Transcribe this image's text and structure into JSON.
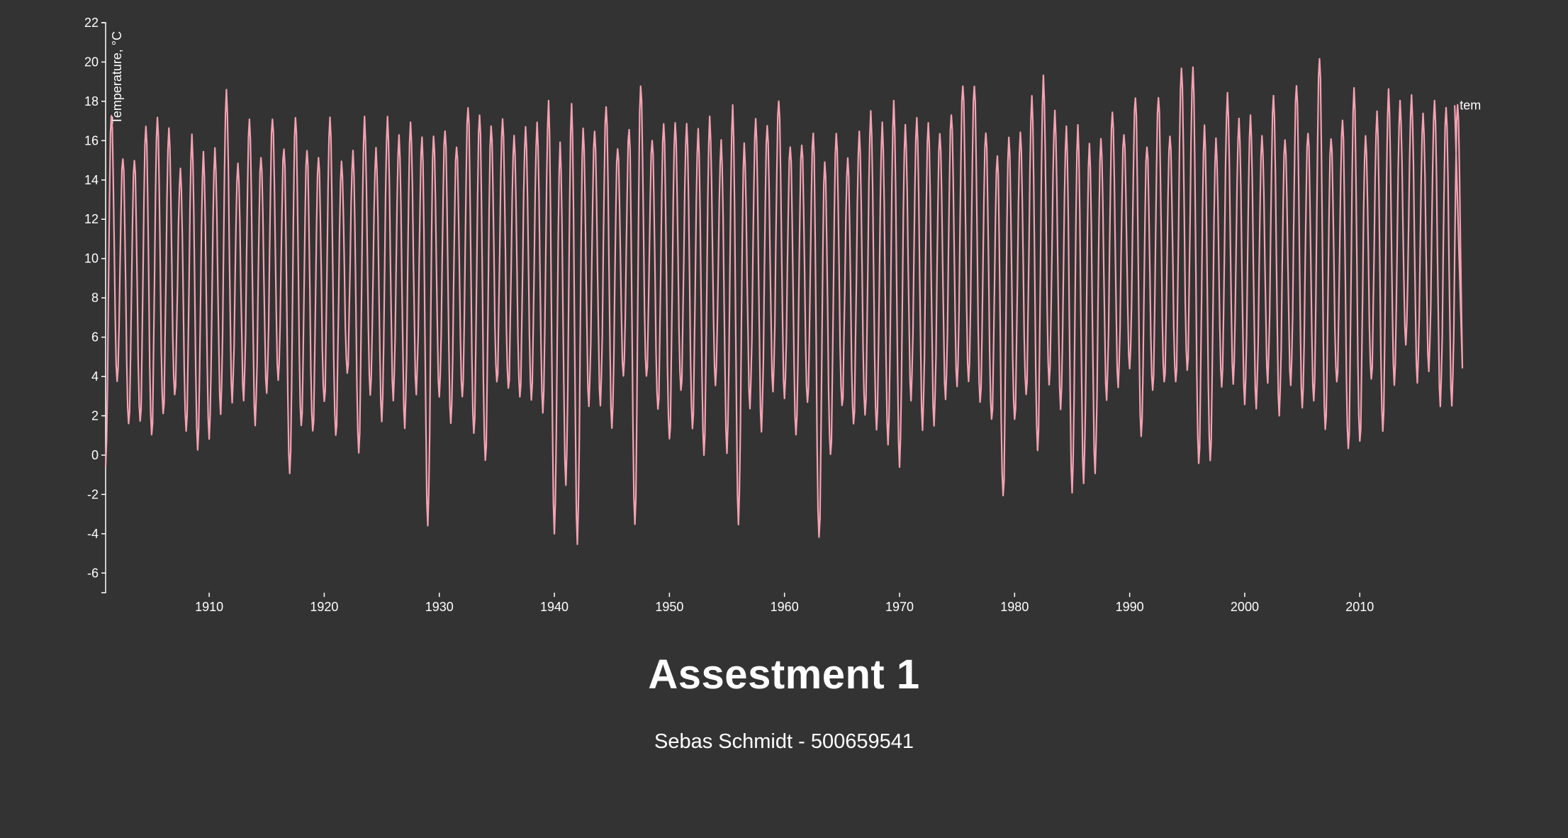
{
  "page": {
    "title": "Assestment 1",
    "subtitle": "Sebas Schmidt - 500659541"
  },
  "colors": {
    "background": "#333333",
    "line": "#f4a2b3",
    "axis": "#ffffff",
    "text": "#ffffff"
  },
  "chart_data": {
    "type": "line",
    "title": "",
    "xlabel": "",
    "ylabel": "Temperature, °C",
    "grid": false,
    "legend": "none",
    "xlim": [
      1901,
      2018.3
    ],
    "ylim": [
      -7,
      22
    ],
    "x_ticks": [
      1910,
      1920,
      1930,
      1940,
      1950,
      1960,
      1970,
      1980,
      1990,
      2000,
      2010
    ],
    "y_ticks": [
      22,
      20,
      18,
      16,
      14,
      12,
      10,
      8,
      6,
      4,
      2,
      0,
      -2,
      -4,
      -6
    ],
    "series": [
      {
        "name": "tem",
        "frequency": "monthly",
        "start": 1901,
        "end": 2018,
        "annual_summer_max": [
          17.4,
          15.2,
          15.1,
          16.8,
          17.2,
          16.6,
          14.5,
          16.2,
          15.3,
          15.5,
          18.5,
          14.8,
          17.1,
          15.2,
          17.2,
          15.7,
          17.3,
          15.6,
          15.2,
          17.2,
          14.9,
          15.4,
          17.1,
          15.5,
          17.1,
          16.2,
          16.9,
          16.2,
          16.3,
          16.6,
          15.8,
          17.8,
          17.4,
          16.8,
          17.1,
          16.2,
          16.6,
          16.8,
          17.9,
          15.8,
          17.8,
          16.6,
          16.5,
          17.8,
          15.7,
          16.7,
          18.9,
          16.1,
          16.9,
          16.9,
          16.8,
          16.5,
          17.1,
          15.9,
          17.7,
          15.8,
          17.1,
          16.8,
          18.1,
          15.8,
          15.9,
          16.5,
          15.0,
          16.4,
          15.1,
          16.4,
          17.4,
          16.8,
          17.9,
          16.7,
          17.1,
          16.9,
          16.4,
          17.4,
          18.9,
          18.9,
          16.5,
          15.3,
          16.2,
          16.4,
          18.2,
          19.2,
          17.4,
          16.6,
          16.7,
          15.8,
          16.1,
          17.5,
          16.4,
          18.3,
          15.8,
          18.3,
          16.3,
          19.7,
          19.7,
          16.7,
          16.0,
          18.3,
          17.0,
          17.2,
          16.2,
          18.3,
          16.1,
          18.9,
          16.5,
          20.3,
          16.2,
          17.1,
          18.7,
          16.2,
          17.4,
          18.5,
          17.9,
          18.2,
          17.3,
          18.0,
          17.7,
          17.9
        ],
        "annual_winter_min": [
          -0.6,
          3.7,
          1.5,
          1.6,
          0.9,
          2.0,
          3.0,
          1.2,
          0.3,
          0.9,
          2.2,
          2.8,
          2.9,
          1.6,
          3.2,
          3.8,
          -1.0,
          1.4,
          1.1,
          2.6,
          0.9,
          4.1,
          0.1,
          3.1,
          1.8,
          2.9,
          1.5,
          3.2,
          -3.5,
          3.0,
          1.6,
          2.9,
          1.0,
          -0.4,
          3.6,
          3.3,
          2.9,
          2.8,
          2.2,
          -3.9,
          -1.4,
          -4.4,
          2.6,
          2.6,
          1.4,
          4.0,
          -3.6,
          3.9,
          2.2,
          0.7,
          3.2,
          1.3,
          0.0,
          3.6,
          0.2,
          -3.4,
          2.5,
          1.3,
          3.3,
          2.9,
          1.0,
          2.6,
          -4.3,
          -0.1,
          2.4,
          1.5,
          2.0,
          1.3,
          0.6,
          -0.5,
          2.9,
          1.4,
          1.6,
          2.9,
          3.5,
          3.7,
          2.6,
          1.7,
          -2.2,
          1.7,
          3.0,
          0.2,
          3.6,
          2.4,
          -1.8,
          -1.3,
          -0.8,
          2.9,
          3.5,
          4.4,
          0.9,
          3.2,
          3.6,
          3.6,
          4.2,
          -0.5,
          -0.3,
          3.5,
          3.7,
          2.7,
          2.5,
          3.8,
          2.1,
          3.6,
          2.4,
          2.7,
          1.2,
          3.6,
          0.2,
          0.6,
          3.8,
          1.2,
          3.6,
          5.7,
          3.8,
          4.4,
          2.6,
          2.6
        ]
      }
    ]
  }
}
